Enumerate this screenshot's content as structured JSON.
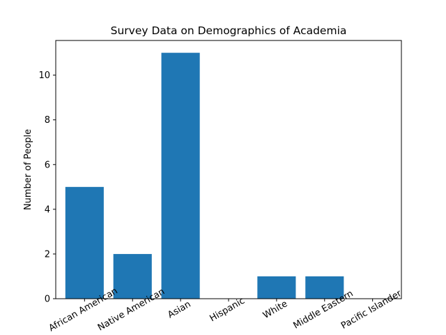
{
  "chart_data": {
    "type": "bar",
    "title": "Survey Data on Demographics of Academia",
    "xlabel": "",
    "ylabel": "Number of People",
    "categories": [
      "African American",
      "Native American",
      "Asian",
      "Hispanic",
      "White",
      "Middle Eastern",
      "Pacific Islander"
    ],
    "values": [
      5,
      2,
      11,
      0,
      1,
      1,
      0
    ],
    "ylim": [
      0,
      11.55
    ],
    "yticks": [
      0,
      2,
      4,
      6,
      8,
      10
    ],
    "bar_color": "#1f77b4",
    "grid": false,
    "xtick_rotation": 30
  }
}
